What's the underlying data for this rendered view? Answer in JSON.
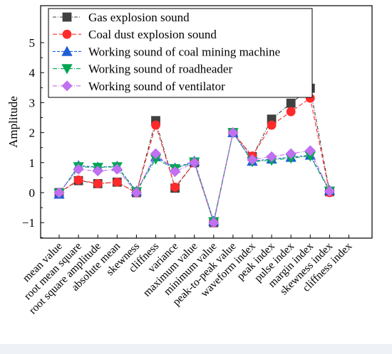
{
  "chart_data": {
    "type": "line",
    "ylabel": "Amplitude",
    "ylim": [
      -1.5,
      5
    ],
    "yticks": [
      -1,
      0,
      1,
      2,
      3,
      4,
      5
    ],
    "ytick_labels": [
      "−1",
      "0",
      "1",
      "2",
      "3",
      "4",
      "5"
    ],
    "categories": [
      "mean value",
      "root mean square",
      "root square amplitude",
      "absolute mean",
      "skewness",
      "cliffness",
      "variance",
      "maximum value",
      "minimum value",
      "peak-to-peak value",
      "waveform index",
      "peak index",
      "pulse index",
      "margin index",
      "skewness index",
      "cliffness index"
    ],
    "legend_position": "top-left",
    "series": [
      {
        "name": "Gas explosion sound",
        "color": "#404040",
        "marker": "square",
        "dash": "5,2,1,2",
        "values": [
          0,
          0.4,
          0.3,
          0.35,
          0,
          2.4,
          0.15,
          1.0,
          -1.0,
          2.0,
          1.2,
          2.45,
          2.98,
          3.48,
          0.03,
          null
        ]
      },
      {
        "name": "Coal dust explosion sound",
        "color": "#ff2a2a",
        "marker": "circle",
        "dash": "6,3",
        "values": [
          0,
          0.42,
          0.3,
          0.35,
          0,
          2.25,
          0.18,
          1.0,
          -1.0,
          2.0,
          1.22,
          2.25,
          2.7,
          3.15,
          0,
          null
        ]
      },
      {
        "name": "Working sound of coal mining machine",
        "color": "#1f5fd6",
        "marker": "triangle-up",
        "dash": "4,2",
        "values": [
          -0.05,
          0.9,
          0.85,
          0.88,
          0.05,
          1.2,
          0.82,
          1.05,
          -0.95,
          2.0,
          1.05,
          1.12,
          1.18,
          1.25,
          0.08,
          null
        ]
      },
      {
        "name": "Working sound of roadheader",
        "color": "#00a651",
        "marker": "triangle-down",
        "dash": "6,2,1,2",
        "values": [
          -0.02,
          0.86,
          0.84,
          0.86,
          0.03,
          1.12,
          0.8,
          1.02,
          -0.97,
          2.0,
          1.03,
          1.08,
          1.15,
          1.22,
          0.05,
          null
        ]
      },
      {
        "name": "Working sound of ventilator",
        "color": "#c070f0",
        "marker": "diamond",
        "dash": "6,2,1,2",
        "values": [
          0,
          0.78,
          0.72,
          0.78,
          0,
          1.3,
          0.7,
          1.0,
          -1.0,
          2.0,
          1.1,
          1.2,
          1.3,
          1.4,
          0.05,
          null
        ]
      }
    ]
  }
}
